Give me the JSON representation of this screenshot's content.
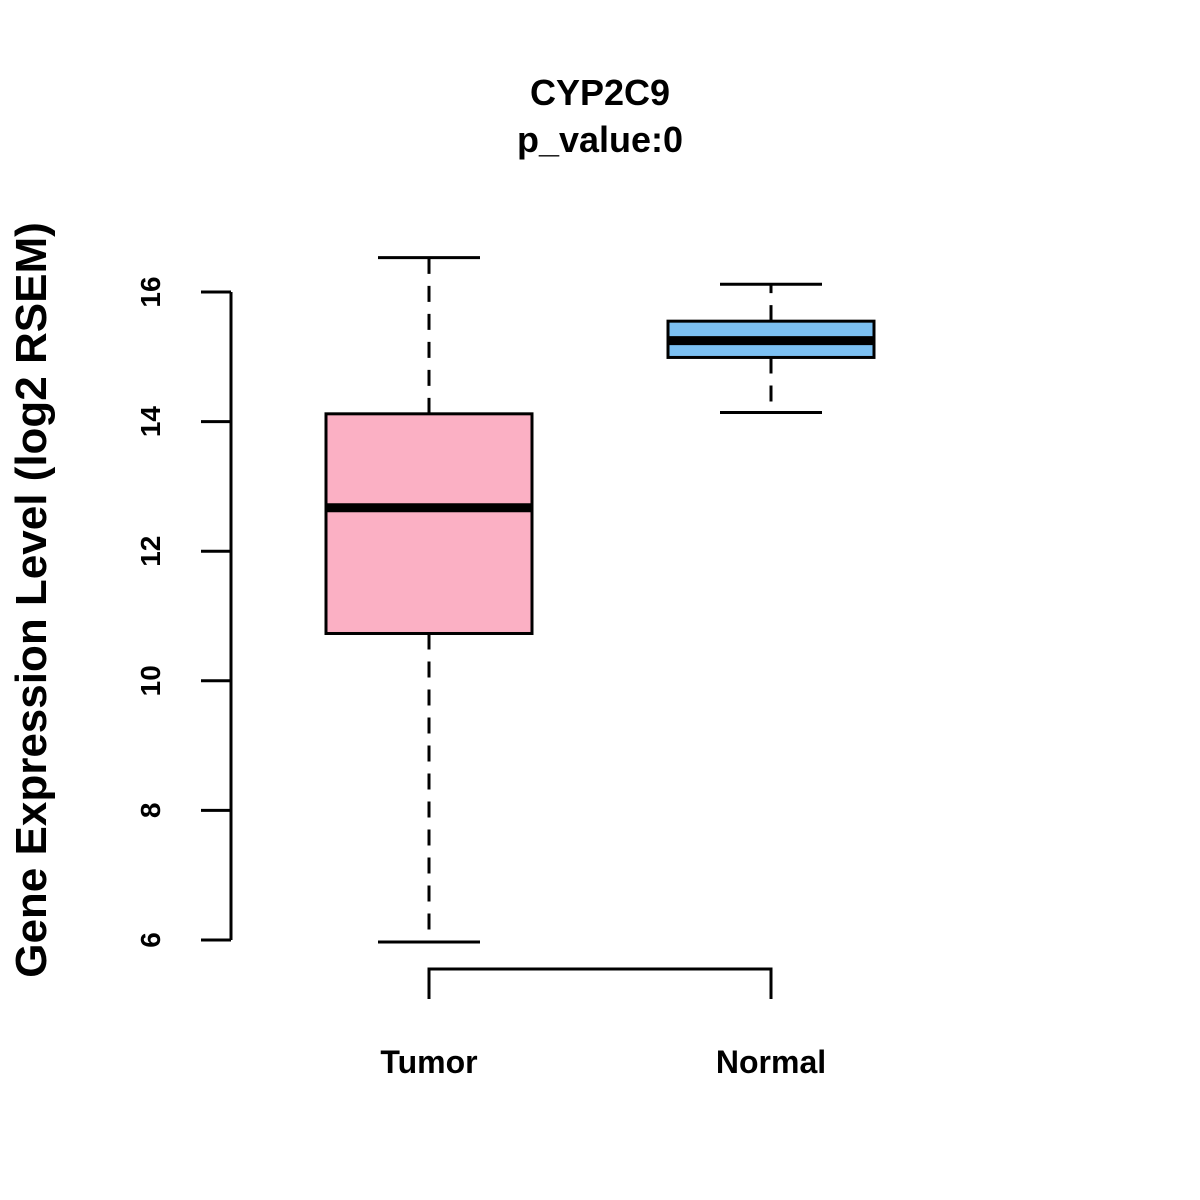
{
  "chart_data": {
    "type": "boxplot",
    "title": "CYP2C9",
    "subtitle": "p_value:0",
    "ylabel": "Gene Expression Level (log2 RSEM)",
    "xlabel": "",
    "ylim": [
      6,
      16
    ],
    "yticks": [
      6,
      8,
      10,
      12,
      14,
      16
    ],
    "grid": false,
    "categories": [
      "Tumor",
      "Normal"
    ],
    "boxes": [
      {
        "category": "Tumor",
        "whisker_low": 5.97,
        "q1": 10.73,
        "median": 12.67,
        "q3": 14.12,
        "whisker_high": 16.53,
        "color": "#FBB0C4"
      },
      {
        "category": "Normal",
        "whisker_low": 14.14,
        "q1": 14.99,
        "median": 15.25,
        "q3": 15.55,
        "whisker_high": 16.12,
        "color": "#7CC0F2"
      }
    ]
  }
}
